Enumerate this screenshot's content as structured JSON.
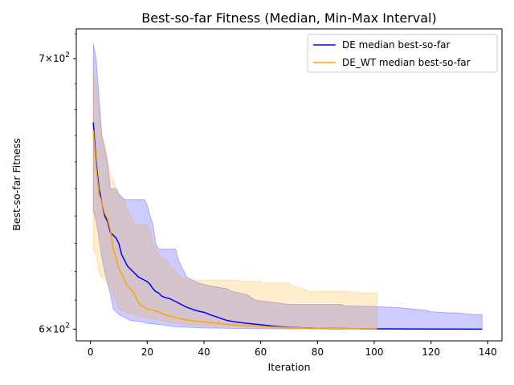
{
  "chart_data": {
    "type": "line",
    "title": "Best-so-far Fitness (Median, Min-Max Interval)",
    "xlabel": "Iteration",
    "ylabel": "Best-so-far Fitness",
    "yscale": "log",
    "xlim": [
      -5,
      145
    ],
    "ylim": [
      596,
      712
    ],
    "xticks": [
      0,
      20,
      40,
      60,
      80,
      100,
      120,
      140
    ],
    "xtick_labels": [
      "0",
      "20",
      "40",
      "60",
      "80",
      "100",
      "120",
      "140"
    ],
    "yticks": [
      600,
      700
    ],
    "ytick_labels": [
      {
        "base": "6",
        "exp": "2"
      },
      {
        "base": "7",
        "exp": "2"
      }
    ],
    "grid": false,
    "legend_position": "upper right",
    "series": [
      {
        "name": "DE median best-so-far",
        "color": "#0000ff",
        "fill_color": "#0000ff",
        "fill_opacity": 0.2,
        "median": [
          [
            1,
            675
          ],
          [
            2,
            660
          ],
          [
            3,
            650
          ],
          [
            4,
            645
          ],
          [
            5,
            640
          ],
          [
            6,
            638
          ],
          [
            7,
            634
          ],
          [
            8,
            633
          ],
          [
            9,
            632
          ],
          [
            10,
            630
          ],
          [
            11,
            626
          ],
          [
            12,
            624
          ],
          [
            13,
            622
          ],
          [
            14,
            621
          ],
          [
            15,
            620
          ],
          [
            16,
            619
          ],
          [
            17,
            618
          ],
          [
            18,
            617.5
          ],
          [
            19,
            617
          ],
          [
            20,
            616.5
          ],
          [
            21,
            615.5
          ],
          [
            22,
            614
          ],
          [
            23,
            613
          ],
          [
            24,
            612.5
          ],
          [
            25,
            611.5
          ],
          [
            26,
            611
          ],
          [
            28,
            610.5
          ],
          [
            30,
            609.5
          ],
          [
            32,
            608.5
          ],
          [
            34,
            607.5
          ],
          [
            36,
            606.8
          ],
          [
            38,
            606.2
          ],
          [
            40,
            605.8
          ],
          [
            42,
            605
          ],
          [
            45,
            604
          ],
          [
            48,
            603
          ],
          [
            51,
            602.5
          ],
          [
            55,
            602
          ],
          [
            60,
            601.5
          ],
          [
            65,
            601
          ],
          [
            70,
            600.6
          ],
          [
            80,
            600.3
          ],
          [
            90,
            600.2
          ],
          [
            100,
            600.1
          ],
          [
            120,
            600.05
          ],
          [
            138,
            600
          ]
        ],
        "upper": [
          [
            1,
            706
          ],
          [
            2,
            700
          ],
          [
            3,
            685
          ],
          [
            4,
            670
          ],
          [
            5,
            665
          ],
          [
            6,
            660
          ],
          [
            7,
            650
          ],
          [
            9,
            650
          ],
          [
            10,
            648
          ],
          [
            12,
            646
          ],
          [
            19,
            646
          ],
          [
            20,
            644
          ],
          [
            21,
            640
          ],
          [
            22,
            637
          ],
          [
            23,
            630
          ],
          [
            24,
            628
          ],
          [
            30,
            628
          ],
          [
            31,
            624
          ],
          [
            32,
            622
          ],
          [
            34,
            618
          ],
          [
            38,
            616
          ],
          [
            42,
            615
          ],
          [
            45,
            614.5
          ],
          [
            48,
            614
          ],
          [
            50,
            613
          ],
          [
            55,
            612
          ],
          [
            58,
            610
          ],
          [
            62,
            609.5
          ],
          [
            66,
            609
          ],
          [
            70,
            608.5
          ],
          [
            88,
            608.5
          ],
          [
            90,
            608
          ],
          [
            100,
            607.8
          ],
          [
            110,
            607.3
          ],
          [
            115,
            606.8
          ],
          [
            118,
            606.5
          ],
          [
            120,
            606
          ],
          [
            125,
            605.7
          ],
          [
            130,
            605.5
          ],
          [
            135,
            605
          ],
          [
            138,
            605
          ]
        ],
        "lower": [
          [
            1,
            642
          ],
          [
            2,
            638
          ],
          [
            3,
            632
          ],
          [
            4,
            625
          ],
          [
            5,
            620
          ],
          [
            6,
            616
          ],
          [
            7,
            612
          ],
          [
            8,
            607
          ],
          [
            10,
            605
          ],
          [
            12,
            604
          ],
          [
            14,
            603
          ],
          [
            18,
            602.5
          ],
          [
            20,
            602
          ],
          [
            25,
            601.5
          ],
          [
            30,
            600.8
          ],
          [
            40,
            600.4
          ],
          [
            60,
            600.1
          ],
          [
            100,
            600
          ],
          [
            138,
            600
          ]
        ]
      },
      {
        "name": "DE_WT median best-so-far",
        "color": "#ffa500",
        "fill_color": "#ffa500",
        "fill_opacity": 0.2,
        "median": [
          [
            1,
            672
          ],
          [
            2,
            658
          ],
          [
            3,
            648
          ],
          [
            4,
            645
          ],
          [
            5,
            641
          ],
          [
            6,
            639
          ],
          [
            7,
            635
          ],
          [
            8,
            628
          ],
          [
            9,
            625
          ],
          [
            10,
            621
          ],
          [
            11,
            619
          ],
          [
            12,
            617
          ],
          [
            13,
            615
          ],
          [
            14,
            614
          ],
          [
            15,
            613
          ],
          [
            16,
            611
          ],
          [
            17,
            609
          ],
          [
            18,
            608
          ],
          [
            19,
            607.5
          ],
          [
            20,
            607
          ],
          [
            22,
            606.5
          ],
          [
            24,
            606
          ],
          [
            26,
            605
          ],
          [
            28,
            604.5
          ],
          [
            30,
            604
          ],
          [
            32,
            603.5
          ],
          [
            35,
            603
          ],
          [
            40,
            602.5
          ],
          [
            45,
            602
          ],
          [
            50,
            601.5
          ],
          [
            55,
            601.2
          ],
          [
            60,
            601
          ],
          [
            70,
            600.5
          ],
          [
            80,
            600.3
          ],
          [
            90,
            600.2
          ],
          [
            101,
            600.1
          ]
        ],
        "upper": [
          [
            1,
            695
          ],
          [
            2,
            690
          ],
          [
            3,
            680
          ],
          [
            4,
            670
          ],
          [
            5,
            667
          ],
          [
            6,
            660
          ],
          [
            7,
            655
          ],
          [
            8,
            653
          ],
          [
            10,
            648
          ],
          [
            12,
            645
          ],
          [
            14,
            640
          ],
          [
            15,
            638
          ],
          [
            16,
            637
          ],
          [
            20,
            637
          ],
          [
            21,
            634
          ],
          [
            22,
            630
          ],
          [
            24,
            626
          ],
          [
            27,
            624
          ],
          [
            28,
            622
          ],
          [
            30,
            620
          ],
          [
            32,
            618
          ],
          [
            35,
            617
          ],
          [
            52,
            617
          ],
          [
            53,
            616.5
          ],
          [
            60,
            616.5
          ],
          [
            61,
            616
          ],
          [
            70,
            616
          ],
          [
            71,
            615
          ],
          [
            75,
            614
          ],
          [
            77,
            613
          ],
          [
            92,
            613
          ],
          [
            93,
            612.5
          ],
          [
            100,
            612.5
          ],
          [
            101,
            612.5
          ]
        ],
        "lower": [
          [
            1,
            628
          ],
          [
            2,
            626
          ],
          [
            3,
            620
          ],
          [
            4,
            618
          ],
          [
            6,
            616
          ],
          [
            8,
            612
          ],
          [
            10,
            607
          ],
          [
            12,
            606
          ],
          [
            15,
            605
          ],
          [
            20,
            604
          ],
          [
            25,
            603
          ],
          [
            30,
            602
          ],
          [
            35,
            601.5
          ],
          [
            45,
            601
          ],
          [
            60,
            600.5
          ],
          [
            80,
            600.2
          ],
          [
            101,
            600
          ]
        ]
      }
    ]
  }
}
